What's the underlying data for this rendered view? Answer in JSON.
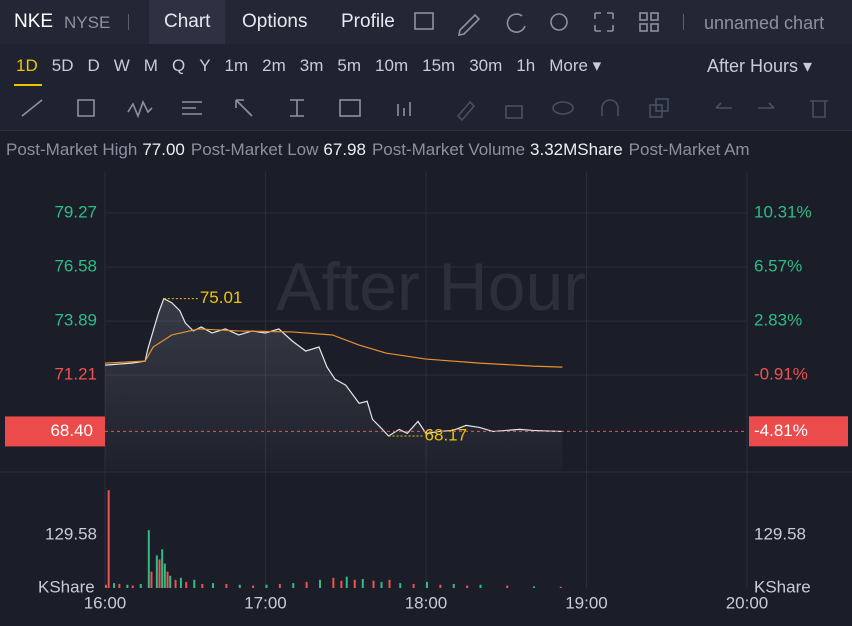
{
  "header": {
    "symbol": "NKE",
    "exchange": "NYSE",
    "tabs": [
      "Chart",
      "Options",
      "Profile"
    ],
    "chart_name": "unnamed chart"
  },
  "timeframes": {
    "items": [
      "1D",
      "5D",
      "D",
      "W",
      "M",
      "Q",
      "Y",
      "1m",
      "2m",
      "3m",
      "5m",
      "10m",
      "15m",
      "30m",
      "1h"
    ],
    "more": "More",
    "session": "After Hours"
  },
  "stats": [
    {
      "label": "Post-Market High",
      "value": "77.00"
    },
    {
      "label": "Post-Market Low",
      "value": "67.98"
    },
    {
      "label": "Post-Market Volume",
      "value": "3.32MShare"
    },
    {
      "label": "Post-Market Am"
    }
  ],
  "chart_data": [
    {
      "type": "line",
      "watermark": "After Hour",
      "up_color": "#2dbd85",
      "down_color": "#f0524f",
      "xlim": [
        0,
        240
      ],
      "xticks": [
        {
          "value": 0,
          "label": "16:00"
        },
        {
          "value": 60,
          "label": "17:00"
        },
        {
          "value": 120,
          "label": "18:00"
        },
        {
          "value": 180,
          "label": "19:00"
        },
        {
          "value": 240,
          "label": "20:00"
        }
      ],
      "ylim": [
        66.48,
        81.31
      ],
      "yticks": [
        79.27,
        76.58,
        73.89,
        71.21
      ],
      "y2lim": [
        -7.49,
        13.15
      ],
      "y2ticks": [
        {
          "value": 10.31,
          "label": "10.31%"
        },
        {
          "value": 6.57,
          "label": "6.57%"
        },
        {
          "value": 2.83,
          "label": "2.83%"
        },
        {
          "value": -0.91,
          "label": "-0.91%"
        }
      ],
      "series": [
        {
          "color": "#e6e6e6",
          "x": [
            0,
            5,
            10,
            15,
            16,
            18,
            20,
            22,
            25,
            28,
            30,
            33,
            36,
            40,
            45,
            50,
            55,
            60,
            65,
            70,
            75,
            80,
            83,
            86,
            90,
            95,
            98,
            100,
            103,
            106,
            110,
            113,
            117,
            120,
            125,
            130,
            135,
            140,
            145,
            150,
            155,
            160,
            165,
            171
          ],
          "values": [
            71.7,
            71.75,
            71.8,
            71.9,
            72.5,
            73.4,
            74.3,
            75.01,
            74.8,
            74.4,
            73.8,
            73.4,
            73.6,
            73.3,
            73.5,
            73.2,
            73.4,
            73.3,
            73.5,
            72.9,
            72.4,
            72.6,
            71.6,
            71.0,
            70.7,
            69.8,
            69.9,
            69.0,
            68.6,
            68.17,
            68.5,
            68.3,
            68.9,
            68.3,
            68.4,
            68.45,
            68.7,
            68.6,
            68.4,
            68.45,
            68.5,
            68.45,
            68.42,
            68.4
          ]
        },
        {
          "color": "#e8912d",
          "x": [
            0,
            15,
            18,
            25,
            35,
            50,
            70,
            85,
            95,
            105,
            120,
            140,
            160,
            171
          ],
          "values": [
            71.8,
            71.9,
            72.6,
            73.2,
            73.5,
            73.4,
            73.35,
            73.2,
            72.7,
            72.3,
            72.0,
            71.8,
            71.65,
            71.6
          ]
        }
      ],
      "annotations": [
        {
          "x": 22,
          "value": 75.01
        },
        {
          "x": 106,
          "value": 68.17
        }
      ],
      "last_price": {
        "value": 68.4,
        "label": "68.40"
      },
      "last_change": {
        "value": -4.81,
        "label": "-4.81%"
      }
    },
    {
      "type": "bar",
      "unit": "KShare",
      "ylim": [
        0,
        270
      ],
      "yticks": [
        129.58
      ],
      "x": [
        0,
        1,
        3,
        5,
        8,
        10,
        13,
        16,
        17,
        19,
        20,
        21,
        22,
        23,
        24,
        26,
        28,
        30,
        33,
        36,
        40,
        45,
        50,
        55,
        60,
        65,
        70,
        75,
        80,
        85,
        88,
        90,
        93,
        96,
        100,
        103,
        106,
        110,
        115,
        120,
        125,
        130,
        135,
        140,
        150,
        160,
        170
      ],
      "values": [
        8,
        240,
        12,
        10,
        8,
        6,
        10,
        142,
        40,
        80,
        70,
        95,
        60,
        40,
        30,
        20,
        25,
        15,
        20,
        10,
        12,
        10,
        8,
        6,
        8,
        10,
        12,
        15,
        20,
        25,
        18,
        28,
        20,
        22,
        18,
        15,
        20,
        12,
        10,
        15,
        8,
        10,
        6,
        8,
        6,
        4,
        3
      ],
      "colors": [
        "#f0524f",
        "#f0524f",
        "#2dbd85",
        "#f0524f",
        "#2dbd85",
        "#f0524f",
        "#2dbd85",
        "#2dbd85",
        "#f0524f",
        "#2dbd85",
        "#f0524f",
        "#2dbd85",
        "#2dbd85",
        "#f0524f",
        "#2dbd85",
        "#f0524f",
        "#2dbd85",
        "#f0524f",
        "#2dbd85",
        "#f0524f",
        "#2dbd85",
        "#f0524f",
        "#2dbd85",
        "#f0524f",
        "#2dbd85",
        "#f0524f",
        "#2dbd85",
        "#f0524f",
        "#2dbd85",
        "#f0524f",
        "#f0524f",
        "#2dbd85",
        "#f0524f",
        "#2dbd85",
        "#f0524f",
        "#2dbd85",
        "#f0524f",
        "#2dbd85",
        "#f0524f",
        "#2dbd85",
        "#f0524f",
        "#2dbd85",
        "#f0524f",
        "#2dbd85",
        "#f0524f",
        "#2dbd85",
        "#f0524f"
      ]
    }
  ]
}
